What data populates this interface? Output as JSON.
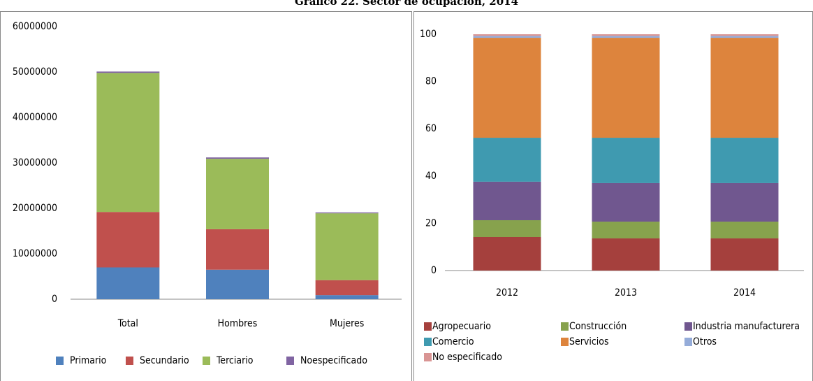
{
  "title": "Gráfico 22. Sector de ocupación, 2014",
  "chart_data": [
    {
      "type": "bar",
      "stacked": true,
      "grid": false,
      "legend": "bottom",
      "categories": [
        "Total",
        "Hombres",
        "Mujeres"
      ],
      "ylim": [
        0,
        60000000
      ],
      "yticks": [
        0,
        10000000,
        20000000,
        30000000,
        40000000,
        50000000,
        60000000
      ],
      "series": [
        {
          "name": "Primario",
          "color": "#4f81bd",
          "values": [
            7000000,
            6500000,
            900000
          ]
        },
        {
          "name": "Secundario",
          "color": "#c0504d",
          "values": [
            12200000,
            8900000,
            3300000
          ]
        },
        {
          "name": "Terciario",
          "color": "#9bbb59",
          "values": [
            30600000,
            15500000,
            14700000
          ]
        },
        {
          "name": "Noespecificado",
          "color": "#8064a2",
          "values": [
            300000,
            300000,
            200000
          ]
        }
      ]
    },
    {
      "type": "bar",
      "stacked": true,
      "grid": false,
      "legend": "bottom",
      "categories": [
        "2012",
        "2013",
        "2014"
      ],
      "ylim": [
        0,
        100
      ],
      "yticks": [
        0,
        20,
        40,
        60,
        80,
        100
      ],
      "series": [
        {
          "name": "Agropecuario",
          "color": "#a5403d",
          "values": [
            14.2,
            13.6,
            13.6
          ]
        },
        {
          "name": "Construcción",
          "color": "#87a24d",
          "values": [
            7.1,
            7.1,
            7.1
          ]
        },
        {
          "name": "Industria manufacturera",
          "color": "#70578f",
          "values": [
            16.3,
            16.3,
            16.3
          ]
        },
        {
          "name": "Comercio",
          "color": "#3f9ab0",
          "values": [
            18.6,
            19.2,
            19.2
          ]
        },
        {
          "name": "Servicios",
          "color": "#dd843d",
          "values": [
            42.3,
            42.3,
            42.3
          ]
        },
        {
          "name": "Otros",
          "color": "#95acd9",
          "values": [
            0.8,
            0.8,
            0.8
          ]
        },
        {
          "name": "No especificado",
          "color": "#d99594",
          "values": [
            0.7,
            0.7,
            0.7
          ]
        }
      ]
    }
  ]
}
